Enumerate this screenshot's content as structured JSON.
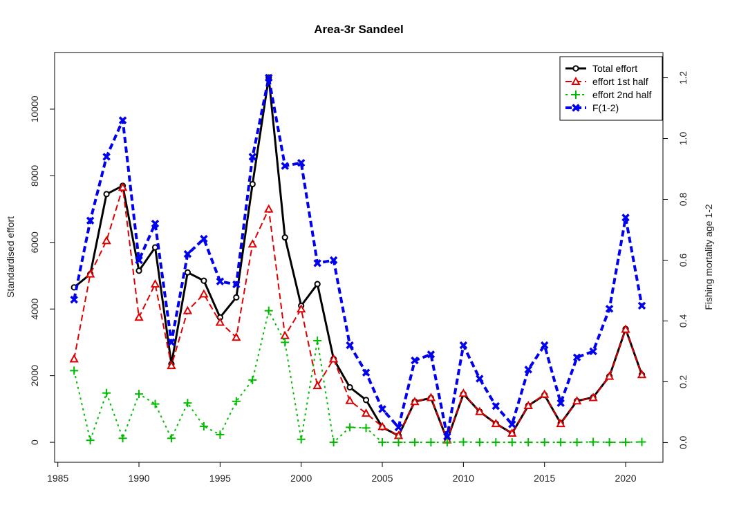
{
  "chart_data": {
    "type": "line",
    "title": "Area-3r Sandeel",
    "xlabel": "",
    "ylabel": "Standardised effort",
    "y2label": "Fishing mortality age 1-2",
    "xlim": [
      1984.8,
      2022.3
    ],
    "ylim": [
      -600,
      11700
    ],
    "y2lim": [
      -0.065,
      1.283
    ],
    "xticks": [
      1985,
      1990,
      1995,
      2000,
      2005,
      2010,
      2015,
      2020
    ],
    "yticks": [
      0,
      2000,
      4000,
      6000,
      8000,
      10000
    ],
    "y2ticks": [
      "0.0",
      "0.2",
      "0.4",
      "0.6",
      "0.8",
      "1.0",
      "1.2"
    ],
    "legend_position": "top-right",
    "x": [
      1986,
      1987,
      1988,
      1989,
      1990,
      1991,
      1992,
      1993,
      1994,
      1995,
      1996,
      1997,
      1998,
      1999,
      2000,
      2001,
      2002,
      2003,
      2004,
      2005,
      2006,
      2007,
      2008,
      2009,
      2010,
      2011,
      2012,
      2013,
      2014,
      2015,
      2016,
      2017,
      2018,
      2019,
      2020,
      2021
    ],
    "series": [
      {
        "name": "Total effort",
        "axis": "left",
        "color": "#000000",
        "line": "solid",
        "marker": "circle",
        "values": [
          4650,
          5050,
          7450,
          7700,
          5150,
          5850,
          2350,
          5100,
          4850,
          3750,
          4350,
          7750,
          10950,
          6150,
          4100,
          4750,
          2500,
          1650,
          1270,
          450,
          200,
          1220,
          1330,
          70,
          1450,
          920,
          560,
          270,
          1100,
          1420,
          570,
          1240,
          1350,
          1980,
          3400,
          2030
        ]
      },
      {
        "name": "effort 1st half",
        "axis": "left",
        "color": "#dd0000",
        "line": "dashed",
        "marker": "triangle",
        "values": [
          2500,
          5050,
          6050,
          7650,
          3750,
          4750,
          2300,
          3950,
          4450,
          3600,
          3150,
          5950,
          7000,
          3200,
          4000,
          1700,
          2500,
          1250,
          870,
          470,
          200,
          1220,
          1340,
          70,
          1470,
          920,
          560,
          270,
          1100,
          1440,
          560,
          1240,
          1340,
          1980,
          3390,
          2030
        ]
      },
      {
        "name": "effort 2nd half",
        "axis": "left",
        "color": "#00bb00",
        "line": "dotted",
        "marker": "plus",
        "values": [
          2150,
          60,
          1480,
          120,
          1450,
          1150,
          120,
          1180,
          480,
          230,
          1230,
          1870,
          3950,
          3000,
          90,
          3050,
          0,
          450,
          430,
          0,
          0,
          0,
          0,
          0,
          10,
          0,
          0,
          0,
          0,
          0,
          0,
          0,
          10,
          0,
          0,
          10
        ]
      },
      {
        "name": "F(1-2)",
        "axis": "right",
        "color": "#0000ee",
        "line": "dashed",
        "marker": "x",
        "values": [
          0.47,
          0.73,
          0.94,
          1.06,
          0.6,
          0.72,
          0.33,
          0.62,
          0.67,
          0.53,
          0.52,
          0.94,
          1.2,
          0.91,
          0.92,
          0.59,
          0.6,
          0.32,
          0.23,
          0.11,
          0.05,
          0.27,
          0.29,
          0.02,
          0.32,
          0.21,
          0.12,
          0.06,
          0.24,
          0.32,
          0.13,
          0.28,
          0.3,
          0.44,
          0.74,
          0.45
        ]
      }
    ]
  }
}
